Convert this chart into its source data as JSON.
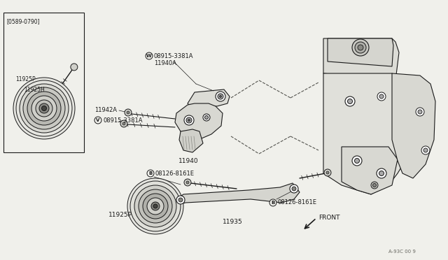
{
  "bg_color": "#f0f0eb",
  "line_color": "#1a1a1a",
  "labels": {
    "W_08915_3381A": "08915-3381A",
    "11940A": "11940A",
    "11942A": "11942A",
    "V_08915_3381A": "08915-3381A",
    "11940": "11940",
    "B_08126_8161E_left": "08126-8161E",
    "B_08126_8161E_right": "08126-8161E",
    "11925P_main": "11925P",
    "11935": "11935",
    "front": "FRONT",
    "date_range": "[0589-0790]",
    "11925P_inset": "11925P",
    "11925H": "11925H",
    "part_num": "A-93C 00 9"
  }
}
